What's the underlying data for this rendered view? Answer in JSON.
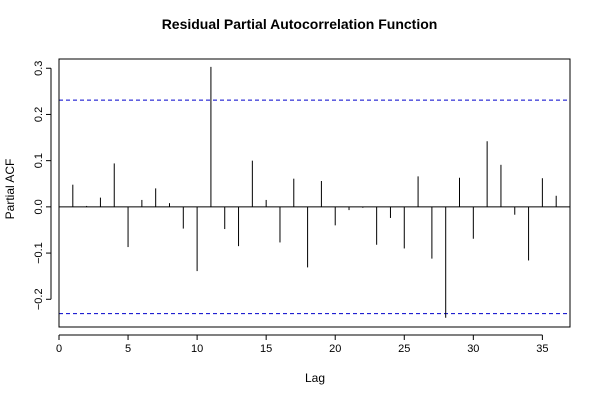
{
  "chart_data": {
    "type": "bar",
    "title": "Residual Partial Autocorrelation Function",
    "xlabel": "Lag",
    "ylabel": "Partial ACF",
    "xlim": [
      0,
      37
    ],
    "ylim": [
      -0.26,
      0.32
    ],
    "xticks": [
      0,
      5,
      10,
      15,
      20,
      25,
      30,
      35
    ],
    "yticks": [
      -0.2,
      -0.1,
      0.0,
      0.1,
      0.2,
      0.3
    ],
    "xtick_labels": [
      "0",
      "5",
      "10",
      "15",
      "20",
      "25",
      "30",
      "35"
    ],
    "ytick_labels": [
      "−0.2",
      "−0.1",
      "0.0",
      "0.1",
      "0.2",
      "0.3"
    ],
    "confidence_bound": 0.231,
    "colors": {
      "bars": "#000000",
      "bounds": "#0000cc",
      "zero_line": "#000000"
    },
    "lags": [
      1,
      2,
      3,
      4,
      5,
      6,
      7,
      8,
      9,
      10,
      11,
      12,
      13,
      14,
      15,
      16,
      17,
      18,
      19,
      20,
      21,
      22,
      23,
      24,
      25,
      26,
      27,
      28,
      29,
      30,
      31,
      32,
      33,
      34,
      35,
      36
    ],
    "values": [
      0.048,
      0.002,
      0.02,
      0.094,
      -0.087,
      0.015,
      0.04,
      0.008,
      -0.047,
      -0.139,
      0.303,
      -0.048,
      -0.085,
      0.1,
      0.015,
      -0.077,
      0.061,
      -0.131,
      0.056,
      -0.04,
      -0.007,
      -0.002,
      -0.082,
      -0.024,
      -0.09,
      0.066,
      -0.112,
      -0.24,
      0.063,
      -0.069,
      0.142,
      0.091,
      -0.017,
      -0.116,
      0.062,
      0.024
    ]
  }
}
